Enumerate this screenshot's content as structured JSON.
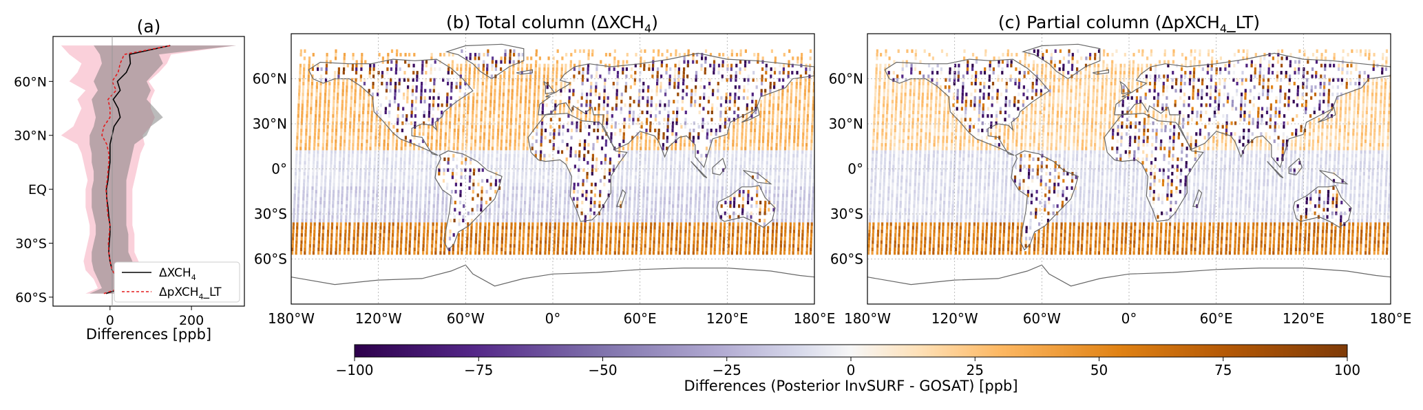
{
  "panel_a": {
    "title": "(a)",
    "xlabel": "Differences [ppb]",
    "legend": {
      "black_label": "ΔXCH",
      "black_sub": "4",
      "red_label": "ΔpXCH",
      "red_sub": "4",
      "red_suffix": "_LT"
    }
  },
  "panel_b": {
    "title_prefix": "(b) Total column (ΔXCH",
    "title_sub": "4",
    "title_suffix": ")"
  },
  "panel_c": {
    "title_prefix": "(c) Partial column (ΔpXCH",
    "title_sub": "4",
    "title_suffix": "_LT)"
  },
  "colorbar": {
    "label": "Differences (Posterior InvSURF - GOSAT) [ppb]",
    "ticks": [
      "−100",
      "−75",
      "−50",
      "−25",
      "0",
      "25",
      "50",
      "75",
      "100"
    ]
  },
  "map_axes": {
    "x_ticks": [
      "180°W",
      "120°W",
      "60°W",
      "0°",
      "60°E",
      "120°E",
      "180°E"
    ],
    "y_ticks": [
      "60°N",
      "30°N",
      "0°",
      "30°S",
      "60°S"
    ]
  },
  "colors": {
    "neg": "#2d004b",
    "mid": "#f7f7f7",
    "pos": "#7f3b08",
    "red_line": "#e31a1c",
    "black_line": "#000000",
    "land": "#666666"
  },
  "chart_data": [
    {
      "type": "line",
      "panel": "a",
      "orientation": "vertical-profile",
      "x_ticks": [
        "0",
        "200"
      ],
      "y_ticks": [
        "60°N",
        "30°N",
        "EQ",
        "30°S",
        "60°S"
      ],
      "xlim": [
        -140,
        330
      ],
      "ylim": [
        -65,
        85
      ],
      "lat": [
        -58,
        -55,
        -50,
        -45,
        -40,
        -35,
        -30,
        -25,
        -20,
        -15,
        -10,
        -5,
        0,
        5,
        10,
        15,
        20,
        25,
        30,
        35,
        40,
        45,
        50,
        55,
        60,
        65,
        70,
        75,
        80
      ],
      "series": [
        {
          "name": "ΔXCH4",
          "mean": [
            -10,
            30,
            20,
            5,
            0,
            -3,
            -2,
            0,
            0,
            -3,
            -5,
            -8,
            -9,
            -5,
            -3,
            0,
            0,
            0,
            5,
            10,
            25,
            20,
            8,
            25,
            18,
            40,
            50,
            48,
            148
          ],
          "lower": [
            -50,
            -20,
            -30,
            -40,
            -45,
            -45,
            -40,
            -35,
            -35,
            -40,
            -45,
            -45,
            -45,
            -40,
            -40,
            -45,
            -45,
            -50,
            -50,
            -40,
            -35,
            -40,
            -45,
            -30,
            -40,
            -30,
            -20,
            -25,
            -40
          ],
          "upper": [
            50,
            70,
            65,
            55,
            55,
            45,
            45,
            45,
            40,
            40,
            40,
            40,
            40,
            40,
            45,
            50,
            55,
            60,
            90,
            100,
            130,
            110,
            90,
            100,
            90,
            110,
            130,
            120,
            310
          ]
        },
        {
          "name": "ΔpXCH4_LT",
          "mean": [
            -15,
            25,
            20,
            5,
            0,
            -3,
            -4,
            -2,
            0,
            -5,
            -7,
            -8,
            -10,
            -7,
            -5,
            -3,
            -3,
            -8,
            -20,
            -15,
            0,
            0,
            -5,
            15,
            5,
            20,
            25,
            35,
            150
          ],
          "lower": [
            -60,
            -30,
            -40,
            -60,
            -65,
            -60,
            -55,
            -50,
            -50,
            -55,
            -60,
            -60,
            -60,
            -55,
            -60,
            -65,
            -70,
            -80,
            -120,
            -90,
            -80,
            -70,
            -80,
            -60,
            -100,
            -80,
            -70,
            -100,
            -120
          ],
          "upper": [
            70,
            90,
            80,
            75,
            70,
            60,
            60,
            60,
            55,
            55,
            55,
            55,
            55,
            60,
            65,
            70,
            75,
            85,
            80,
            100,
            110,
            100,
            100,
            110,
            95,
            120,
            140,
            150,
            310
          ]
        }
      ]
    },
    {
      "type": "heatmap",
      "panel": "b",
      "name": "Total column",
      "xlim": [
        -180,
        180
      ],
      "ylim": [
        -90,
        90
      ],
      "clim": [
        -100,
        100
      ]
    },
    {
      "type": "heatmap",
      "panel": "c",
      "name": "Partial column",
      "xlim": [
        -180,
        180
      ],
      "ylim": [
        -90,
        90
      ],
      "clim": [
        -100,
        100
      ]
    }
  ]
}
